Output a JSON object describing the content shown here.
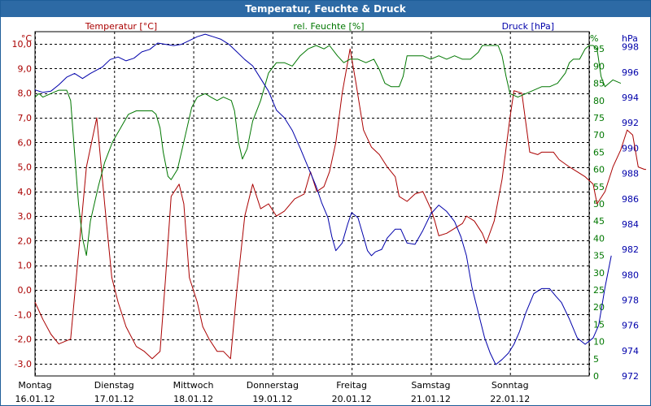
{
  "window": {
    "title": "Temperatur, Feuchte & Druck"
  },
  "chart_data": {
    "type": "line",
    "title": "Temperatur, Feuchte & Druck",
    "colors": {
      "temperature": "#aa0000",
      "humidity": "#007700",
      "pressure": "#0000aa",
      "grid": "#000000"
    },
    "axes": {
      "left": {
        "unit": "°C",
        "label": "Temperatur [°C]",
        "range": [
          -3.5,
          10.5
        ],
        "ticks": [
          "-3,0",
          "-2,0",
          "-1,0",
          "0,0",
          "1,0",
          "2,0",
          "3,0",
          "4,0",
          "5,0",
          "6,0",
          "7,0",
          "8,0",
          "9,0",
          "10,0"
        ]
      },
      "right1": {
        "unit": "%",
        "label": "rel. Feuchte [%]",
        "range": [
          0,
          100
        ],
        "ticks": [
          "0",
          "5",
          "10",
          "15",
          "20",
          "25",
          "30",
          "35",
          "40",
          "45",
          "50",
          "55",
          "60",
          "65",
          "70",
          "75",
          "80",
          "85",
          "90",
          "95"
        ]
      },
      "right2": {
        "unit": "hPa",
        "label": "Druck [hPa]",
        "range": [
          972,
          999.2
        ],
        "ticks": [
          "972",
          "974",
          "976",
          "978",
          "980",
          "982",
          "984",
          "986",
          "988",
          "990",
          "992",
          "994",
          "996",
          "998"
        ]
      }
    },
    "x_labels": [
      {
        "day": "Montag",
        "date": "16.01.12"
      },
      {
        "day": "Dienstag",
        "date": "17.01.12"
      },
      {
        "day": "Mittwoch",
        "date": "18.01.12"
      },
      {
        "day": "Donnerstag",
        "date": "19.01.12"
      },
      {
        "day": "Freitag",
        "date": "20.01.12"
      },
      {
        "day": "Samstag",
        "date": "21.01.12"
      },
      {
        "day": "Sonntag",
        "date": "22.01.12"
      }
    ],
    "x_range_days": [
      0,
      7
    ],
    "series": [
      {
        "name": "Temperatur",
        "axis": "left",
        "points": [
          [
            0,
            -0.5
          ],
          [
            0.1,
            -1.2
          ],
          [
            0.2,
            -1.8
          ],
          [
            0.3,
            -2.2
          ],
          [
            0.45,
            -2.0
          ],
          [
            0.55,
            1.5
          ],
          [
            0.65,
            5.0
          ],
          [
            0.78,
            7.0
          ],
          [
            0.88,
            3.5
          ],
          [
            0.97,
            0.5
          ],
          [
            1.05,
            -0.5
          ],
          [
            1.15,
            -1.5
          ],
          [
            1.28,
            -2.3
          ],
          [
            1.38,
            -2.5
          ],
          [
            1.48,
            -2.8
          ],
          [
            1.58,
            -2.5
          ],
          [
            1.65,
            0.5
          ],
          [
            1.72,
            3.8
          ],
          [
            1.82,
            4.3
          ],
          [
            1.88,
            3.5
          ],
          [
            1.95,
            0.5
          ],
          [
            2.05,
            -0.5
          ],
          [
            2.12,
            -1.5
          ],
          [
            2.2,
            -2.0
          ],
          [
            2.3,
            -2.5
          ],
          [
            2.38,
            -2.5
          ],
          [
            2.47,
            -2.8
          ],
          [
            2.55,
            0.0
          ],
          [
            2.65,
            3.0
          ],
          [
            2.75,
            4.3
          ],
          [
            2.85,
            3.3
          ],
          [
            2.95,
            3.5
          ],
          [
            3.05,
            3.0
          ],
          [
            3.15,
            3.2
          ],
          [
            3.28,
            3.7
          ],
          [
            3.4,
            3.9
          ],
          [
            3.48,
            4.8
          ],
          [
            3.56,
            4.0
          ],
          [
            3.65,
            4.2
          ],
          [
            3.72,
            4.8
          ],
          [
            3.8,
            6.0
          ],
          [
            3.88,
            8.0
          ],
          [
            3.98,
            9.8
          ],
          [
            4.05,
            8.5
          ],
          [
            4.15,
            6.5
          ],
          [
            4.25,
            5.8
          ],
          [
            4.35,
            5.5
          ],
          [
            4.45,
            5.0
          ],
          [
            4.55,
            4.6
          ],
          [
            4.6,
            3.8
          ],
          [
            4.7,
            3.6
          ],
          [
            4.8,
            3.9
          ],
          [
            4.9,
            4.0
          ],
          [
            5.0,
            3.3
          ],
          [
            5.05,
            2.8
          ],
          [
            5.1,
            2.2
          ],
          [
            5.2,
            2.3
          ],
          [
            5.3,
            2.5
          ],
          [
            5.4,
            2.7
          ],
          [
            5.45,
            3.0
          ],
          [
            5.55,
            2.8
          ],
          [
            5.65,
            2.3
          ],
          [
            5.7,
            1.9
          ],
          [
            5.8,
            2.8
          ],
          [
            5.9,
            4.5
          ],
          [
            6.0,
            7.0
          ],
          [
            6.05,
            8.1
          ],
          [
            6.15,
            8.0
          ],
          [
            6.25,
            5.6
          ],
          [
            6.35,
            5.5
          ],
          [
            6.4,
            5.6
          ],
          [
            6.55,
            5.6
          ],
          [
            6.62,
            5.3
          ],
          [
            6.75,
            5.0
          ],
          [
            6.85,
            4.8
          ],
          [
            6.95,
            4.6
          ],
          [
            7.05,
            4.3
          ],
          [
            7.1,
            3.5
          ],
          [
            7.2,
            4.0
          ],
          [
            7.3,
            5.0
          ],
          [
            7.4,
            5.7
          ],
          [
            7.48,
            6.5
          ],
          [
            7.55,
            6.3
          ],
          [
            7.62,
            5.0
          ],
          [
            7.7,
            4.9
          ],
          [
            7.72,
            4.9
          ]
        ]
      },
      {
        "name": "rel. Feuchte",
        "axis": "right1",
        "points": [
          [
            0,
            81
          ],
          [
            0.05,
            82
          ],
          [
            0.1,
            81
          ],
          [
            0.2,
            82
          ],
          [
            0.3,
            83
          ],
          [
            0.4,
            83
          ],
          [
            0.45,
            80
          ],
          [
            0.5,
            65
          ],
          [
            0.55,
            50
          ],
          [
            0.6,
            40
          ],
          [
            0.65,
            35
          ],
          [
            0.7,
            45
          ],
          [
            0.8,
            55
          ],
          [
            0.88,
            62
          ],
          [
            0.98,
            68
          ],
          [
            1.08,
            72
          ],
          [
            1.18,
            76
          ],
          [
            1.28,
            77
          ],
          [
            1.38,
            77
          ],
          [
            1.48,
            77
          ],
          [
            1.53,
            76
          ],
          [
            1.58,
            72
          ],
          [
            1.62,
            65
          ],
          [
            1.68,
            58
          ],
          [
            1.72,
            57
          ],
          [
            1.8,
            60
          ],
          [
            1.88,
            68
          ],
          [
            1.98,
            78
          ],
          [
            2.05,
            81
          ],
          [
            2.15,
            82
          ],
          [
            2.22,
            81
          ],
          [
            2.3,
            80
          ],
          [
            2.38,
            81
          ],
          [
            2.48,
            80
          ],
          [
            2.52,
            77
          ],
          [
            2.57,
            68
          ],
          [
            2.62,
            63
          ],
          [
            2.68,
            66
          ],
          [
            2.75,
            74
          ],
          [
            2.85,
            80
          ],
          [
            2.95,
            88
          ],
          [
            3.05,
            91
          ],
          [
            3.15,
            91
          ],
          [
            3.25,
            90
          ],
          [
            3.35,
            93
          ],
          [
            3.45,
            95
          ],
          [
            3.55,
            96
          ],
          [
            3.65,
            95
          ],
          [
            3.72,
            96
          ],
          [
            3.82,
            93
          ],
          [
            3.9,
            91
          ],
          [
            3.98,
            92
          ],
          [
            4.08,
            92
          ],
          [
            4.18,
            91
          ],
          [
            4.28,
            92
          ],
          [
            4.35,
            89
          ],
          [
            4.42,
            85
          ],
          [
            4.5,
            84
          ],
          [
            4.6,
            84
          ],
          [
            4.65,
            87
          ],
          [
            4.7,
            93
          ],
          [
            4.8,
            93
          ],
          [
            4.9,
            93
          ],
          [
            5.0,
            92
          ],
          [
            5.1,
            93
          ],
          [
            5.2,
            92
          ],
          [
            5.3,
            93
          ],
          [
            5.4,
            92
          ],
          [
            5.5,
            92
          ],
          [
            5.55,
            93
          ],
          [
            5.6,
            94
          ],
          [
            5.65,
            96
          ],
          [
            5.75,
            96
          ],
          [
            5.85,
            96
          ],
          [
            5.9,
            93
          ],
          [
            5.95,
            87
          ],
          [
            6.0,
            82
          ],
          [
            6.1,
            81
          ],
          [
            6.2,
            82
          ],
          [
            6.3,
            83
          ],
          [
            6.4,
            84
          ],
          [
            6.5,
            84
          ],
          [
            6.6,
            85
          ],
          [
            6.7,
            88
          ],
          [
            6.75,
            91
          ],
          [
            6.8,
            92
          ],
          [
            6.88,
            92
          ],
          [
            6.95,
            95
          ],
          [
            7.0,
            96
          ],
          [
            7.05,
            96
          ],
          [
            7.1,
            95
          ],
          [
            7.15,
            87
          ],
          [
            7.2,
            84
          ],
          [
            7.3,
            86
          ],
          [
            7.4,
            85
          ]
        ]
      },
      {
        "name": "Druck",
        "axis": "right2",
        "points": [
          [
            0,
            994.6
          ],
          [
            0.1,
            994.4
          ],
          [
            0.2,
            994.5
          ],
          [
            0.3,
            995.0
          ],
          [
            0.4,
            995.6
          ],
          [
            0.5,
            995.9
          ],
          [
            0.6,
            995.5
          ],
          [
            0.7,
            995.9
          ],
          [
            0.85,
            996.4
          ],
          [
            0.95,
            997.0
          ],
          [
            1.05,
            997.2
          ],
          [
            1.15,
            996.9
          ],
          [
            1.25,
            997.1
          ],
          [
            1.35,
            997.6
          ],
          [
            1.45,
            997.8
          ],
          [
            1.55,
            998.3
          ],
          [
            1.65,
            998.2
          ],
          [
            1.75,
            998.1
          ],
          [
            1.85,
            998.2
          ],
          [
            1.95,
            998.5
          ],
          [
            2.05,
            998.8
          ],
          [
            2.15,
            999.0
          ],
          [
            2.25,
            998.8
          ],
          [
            2.35,
            998.6
          ],
          [
            2.45,
            998.2
          ],
          [
            2.55,
            997.6
          ],
          [
            2.65,
            997.0
          ],
          [
            2.75,
            996.5
          ],
          [
            2.85,
            995.5
          ],
          [
            2.95,
            994.5
          ],
          [
            3.05,
            993.0
          ],
          [
            3.15,
            992.4
          ],
          [
            3.25,
            991.4
          ],
          [
            3.35,
            990.0
          ],
          [
            3.45,
            988.5
          ],
          [
            3.55,
            987.0
          ],
          [
            3.62,
            985.7
          ],
          [
            3.7,
            984.5
          ],
          [
            3.75,
            983.0
          ],
          [
            3.8,
            981.9
          ],
          [
            3.88,
            982.5
          ],
          [
            3.95,
            984.0
          ],
          [
            4.0,
            984.9
          ],
          [
            4.08,
            984.5
          ],
          [
            4.15,
            983.0
          ],
          [
            4.2,
            981.9
          ],
          [
            4.25,
            981.5
          ],
          [
            4.3,
            981.8
          ],
          [
            4.38,
            982.0
          ],
          [
            4.45,
            982.9
          ],
          [
            4.55,
            983.6
          ],
          [
            4.62,
            983.6
          ],
          [
            4.7,
            982.5
          ],
          [
            4.8,
            982.4
          ],
          [
            4.9,
            983.5
          ],
          [
            5.0,
            984.8
          ],
          [
            5.1,
            985.5
          ],
          [
            5.2,
            985.0
          ],
          [
            5.3,
            984.2
          ],
          [
            5.38,
            983.0
          ],
          [
            5.45,
            981.5
          ],
          [
            5.52,
            979.0
          ],
          [
            5.6,
            977.0
          ],
          [
            5.68,
            975.0
          ],
          [
            5.75,
            973.8
          ],
          [
            5.82,
            972.9
          ],
          [
            5.9,
            973.3
          ],
          [
            5.98,
            973.8
          ],
          [
            6.05,
            974.5
          ],
          [
            6.12,
            975.5
          ],
          [
            6.2,
            977.0
          ],
          [
            6.3,
            978.5
          ],
          [
            6.4,
            978.9
          ],
          [
            6.5,
            978.9
          ],
          [
            6.58,
            978.3
          ],
          [
            6.65,
            977.8
          ],
          [
            6.75,
            976.5
          ],
          [
            6.85,
            975.0
          ],
          [
            6.95,
            974.5
          ],
          [
            7.05,
            975.0
          ],
          [
            7.12,
            976.0
          ],
          [
            7.2,
            979.0
          ],
          [
            7.28,
            981.5
          ]
        ]
      }
    ]
  }
}
